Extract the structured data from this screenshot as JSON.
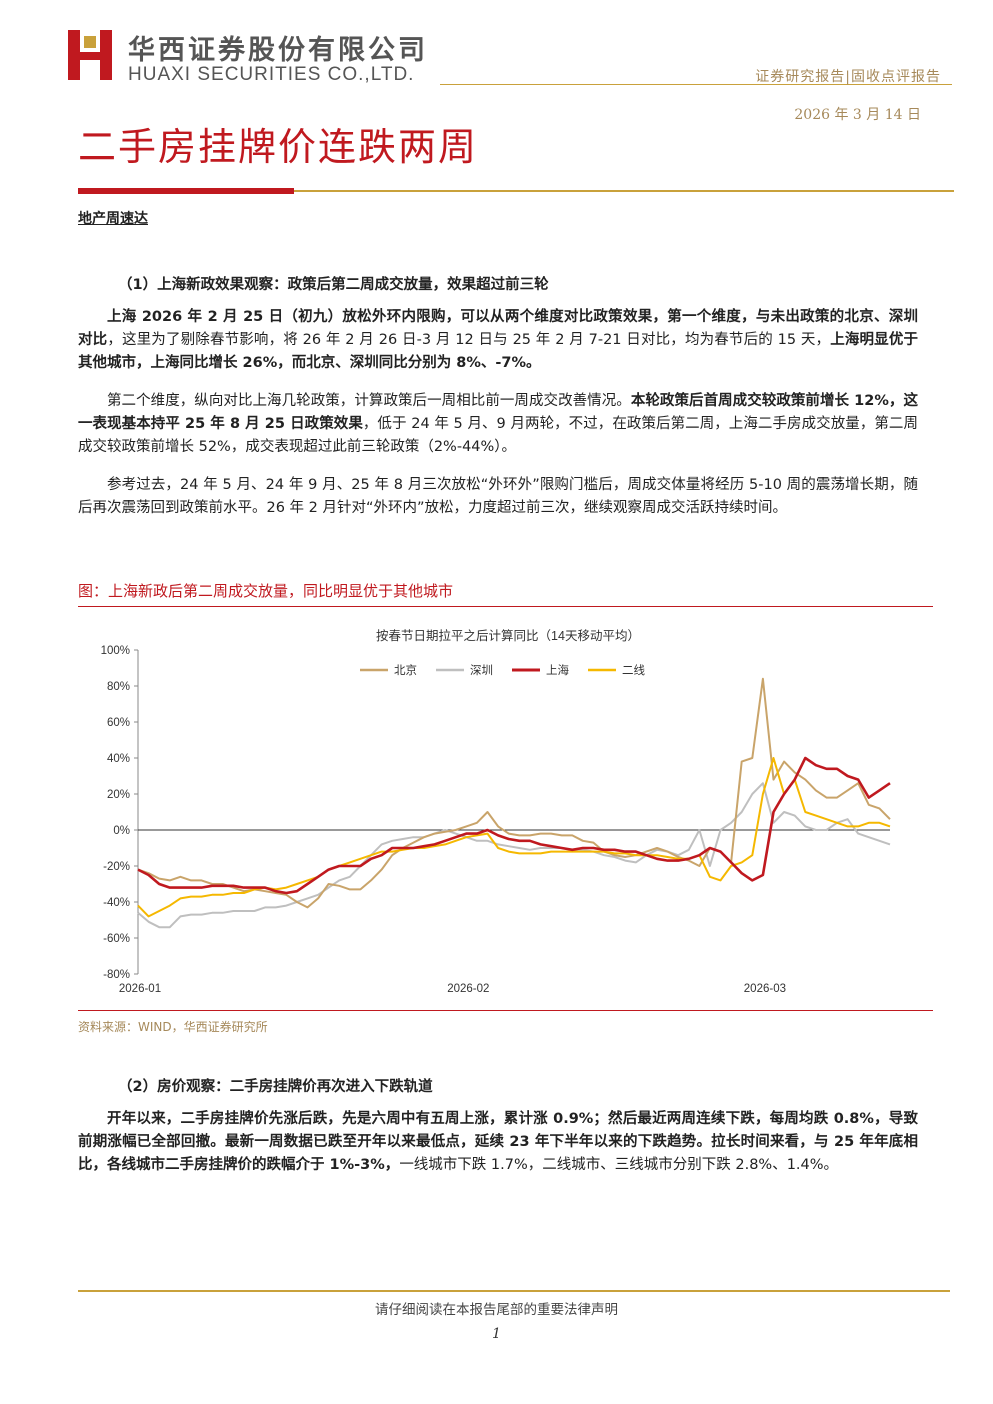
{
  "header": {
    "company_cn": "华西证券股份有限公司",
    "company_en": "HUAXI SECURITIES CO.,LTD.",
    "report_type": "证券研究报告|固收点评报告",
    "date": "2026 年 3 月 14 日"
  },
  "title": "二手房挂牌价连跌两周",
  "section_label": "地产周速达",
  "sec1": {
    "heading": "（1）上海新政效果观察：政策后第二周成交放量，效果超过前三轮",
    "p1": [
      {
        "t": "上海 2026 年 2 月 25 日（初九）放松外环内限购，可以从两个维度对比政策效果，第一个维度，与未出政策的北京、深圳对比",
        "b": true
      },
      {
        "t": "，这里为了剔除春节影响，将 26 年 2 月 26 日-3 月 12 日与 25 年 2 月 7-21 日对比，均为春节后的 15 天，",
        "b": false
      },
      {
        "t": "上海明显优于其他城市，上海同比增长 26%，而北京、深圳同比分别为 8%、-7%。",
        "b": true
      }
    ],
    "p2": [
      {
        "t": "第二个维度，纵向对比上海几轮政策，计算政策后一周相比前一周成交改善情况。",
        "b": false
      },
      {
        "t": "本轮政策后首周成交较政策前增长 12%，这一表现基本持平 25 年 8 月 25 日政策效果",
        "b": true
      },
      {
        "t": "，低于 24 年 5 月、9 月两轮，不过，在政策后第二周，上海二手房成交放量，第二周成交较政策前增长 52%，成交表现超过此前三轮政策（2%-44%）。",
        "b": false
      }
    ],
    "p3": [
      {
        "t": "参考过去，24 年 5 月、24 年 9 月、25 年 8 月三次放松“外环外”限购门槛后，周成交体量将经历 5-10 周的震荡增长期，随后再次震荡回到政策前水平。26 年 2 月针对“外环内”放松，力度超过前三次，继续观察周成交活跃持续时间。",
        "b": false
      }
    ]
  },
  "figure": {
    "caption": "图：上海新政后第二周成交放量，同比明显优于其他城市",
    "source": "资料来源：WIND，华西证券研究所"
  },
  "chart_data": {
    "type": "line",
    "title": "按春节日期拉平之后计算同比（14天移动平均）",
    "ylim": [
      -80,
      100
    ],
    "yticks": [
      "100%",
      "80%",
      "60%",
      "40%",
      "20%",
      "0%",
      "-20%",
      "-40%",
      "-60%",
      "-80%"
    ],
    "ytick_values": [
      100,
      80,
      60,
      40,
      20,
      0,
      -20,
      -40,
      -60,
      -80
    ],
    "x_ticks": [
      {
        "label": "2026-01",
        "i": 0
      },
      {
        "label": "2026-02",
        "i": 31
      },
      {
        "label": "2026-03",
        "i": 59
      }
    ],
    "x_count": 72,
    "legend_position": "top-center",
    "grid": false,
    "series": [
      {
        "name": "北京",
        "color": "#c9a46a",
        "values": [
          -22,
          -24,
          -27,
          -28,
          -26,
          -28,
          -28,
          -30,
          -30,
          -32,
          -34,
          -33,
          -34,
          -35,
          -36,
          -40,
          -43,
          -38,
          -30,
          -31,
          -33,
          -33,
          -28,
          -22,
          -14,
          -10,
          -7,
          -4,
          -2,
          -1,
          0,
          2,
          4,
          10,
          2,
          -2,
          -3,
          -3,
          -2,
          -2,
          -3,
          -3,
          -6,
          -7,
          -12,
          -14,
          -15,
          -14,
          -12,
          -10,
          -12,
          -15,
          -17,
          -20,
          -10,
          -12,
          -18,
          38,
          40,
          84,
          28,
          38,
          32,
          28,
          22,
          18,
          18,
          22,
          26,
          14,
          12,
          6
        ]
      },
      {
        "name": "深圳",
        "color": "#bfbfbf",
        "values": [
          -46,
          -51,
          -54,
          -54,
          -48,
          -47,
          -47,
          -46,
          -46,
          -45,
          -45,
          -45,
          -43,
          -43,
          -42,
          -40,
          -38,
          -36,
          -32,
          -28,
          -26,
          -20,
          -14,
          -8,
          -6,
          -5,
          -4,
          -4,
          -2,
          0,
          -2,
          -4,
          -6,
          -6,
          -8,
          -9,
          -10,
          -11,
          -10,
          -10,
          -10,
          -11,
          -11,
          -12,
          -14,
          -15,
          -17,
          -18,
          -14,
          -11,
          -12,
          -14,
          -11,
          0,
          -20,
          0,
          4,
          10,
          20,
          26,
          4,
          10,
          8,
          2,
          0,
          0,
          4,
          6,
          -2,
          -4,
          -6,
          -8
        ]
      },
      {
        "name": "上海",
        "color": "#c0191f",
        "values": [
          -22,
          -25,
          -30,
          -32,
          -32,
          -32,
          -32,
          -31,
          -31,
          -31,
          -32,
          -32,
          -32,
          -34,
          -35,
          -34,
          -30,
          -26,
          -22,
          -20,
          -20,
          -20,
          -16,
          -14,
          -10,
          -10,
          -10,
          -9,
          -8,
          -6,
          -4,
          -2,
          -2,
          0,
          -3,
          -5,
          -6,
          -6,
          -8,
          -9,
          -10,
          -11,
          -10,
          -10,
          -11,
          -11,
          -12,
          -12,
          -14,
          -16,
          -17,
          -17,
          -16,
          -14,
          -10,
          -12,
          -18,
          -24,
          -28,
          -25,
          10,
          20,
          28,
          40,
          36,
          34,
          34,
          30,
          28,
          18,
          22,
          26
        ]
      },
      {
        "name": "二线",
        "color": "#f5b800",
        "values": [
          -42,
          -48,
          -45,
          -42,
          -38,
          -37,
          -37,
          -36,
          -36,
          -35,
          -35,
          -33,
          -32,
          -33,
          -32,
          -30,
          -28,
          -26,
          -22,
          -20,
          -18,
          -16,
          -14,
          -12,
          -12,
          -11,
          -10,
          -10,
          -9,
          -8,
          -6,
          -4,
          -3,
          -2,
          -10,
          -12,
          -13,
          -13,
          -13,
          -12,
          -12,
          -12,
          -12,
          -12,
          -12,
          -13,
          -13,
          -14,
          -14,
          -14,
          -15,
          -16,
          -16,
          -14,
          -26,
          -28,
          -20,
          -18,
          -14,
          20,
          40,
          20,
          28,
          10,
          8,
          6,
          4,
          2,
          2,
          4,
          4,
          2
        ]
      }
    ]
  },
  "sec2": {
    "heading": "（2）房价观察：二手房挂牌价再次进入下跌轨道",
    "p1": [
      {
        "t": "开年以来，二手房挂牌价先涨后跌，先是六周中有五周上涨，累计涨 0.9%；然后最近两周连续下跌，每周均跌 0.8%，导致前期涨幅已全部回撤。最新一周数据已跌至开年以来最低点，延续 23 年下半年以来的下跌趋势。拉长时间来看，与 25 年年底相比，各线城市二手房挂牌价的跌幅介于 1%-3%，",
        "b": true
      },
      {
        "t": "一线城市下跌 1.7%，二线城市、三线城市分别下跌 2.8%、1.4%。",
        "b": false
      }
    ]
  },
  "footer": {
    "disclaimer": "请仔细阅读在本报告尾部的重要法律声明",
    "page": "1"
  }
}
